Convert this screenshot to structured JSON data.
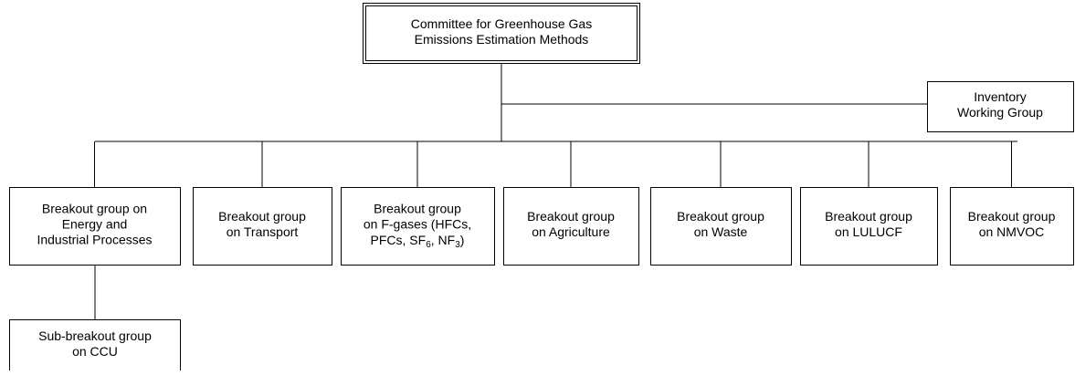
{
  "root": {
    "lines": [
      "Committee for Greenhouse Gas",
      "Emissions Estimation Methods"
    ]
  },
  "side": {
    "lines": [
      "Inventory",
      "Working Group"
    ]
  },
  "groups": [
    {
      "lines": [
        "Breakout group on",
        "Energy and",
        "Industrial Processes"
      ]
    },
    {
      "lines": [
        "Breakout group",
        "on Transport"
      ]
    },
    {
      "lines": [
        "Breakout group",
        "on F-gases (HFCs,",
        [
          "PFCs, SF",
          {
            "sub": "6"
          },
          ", NF",
          {
            "sub": "3"
          },
          ")"
        ]
      ]
    },
    {
      "lines": [
        "Breakout group",
        "on Agriculture"
      ]
    },
    {
      "lines": [
        "Breakout group",
        "on Waste"
      ]
    },
    {
      "lines": [
        "Breakout group",
        "on LULUCF"
      ]
    },
    {
      "lines": [
        "Breakout group",
        "on NMVOC"
      ]
    }
  ],
  "sub": {
    "lines": [
      "Sub-breakout group",
      "on CCU"
    ]
  }
}
